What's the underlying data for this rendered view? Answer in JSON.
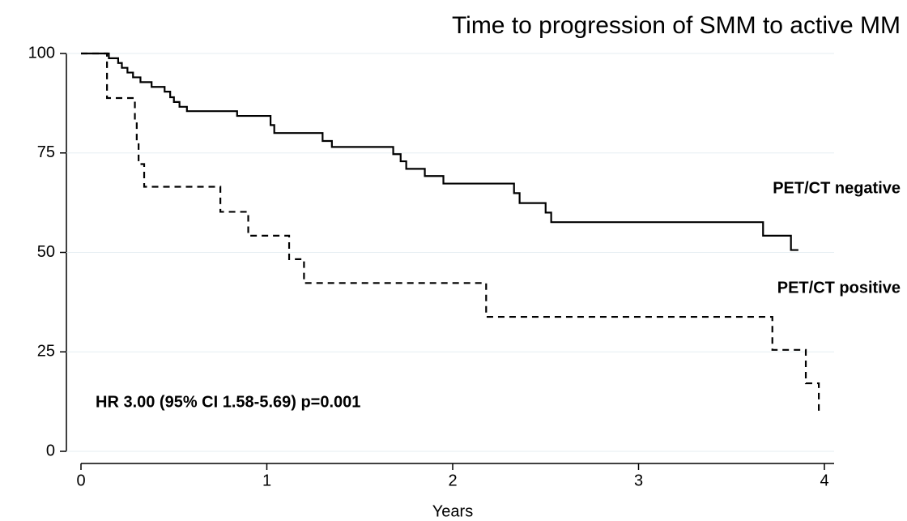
{
  "chart_data": {
    "type": "step",
    "title": "Time to progression of SMM to active MM",
    "x_label": "Years",
    "annotation": "HR 3.00 (95% CI 1.58-5.69) p=0.001",
    "xlim": [
      0,
      4
    ],
    "ylim": [
      0,
      100
    ],
    "xticks": [
      0,
      1,
      2,
      3,
      4
    ],
    "yticks": [
      0,
      25,
      50,
      75,
      100
    ],
    "grid": true,
    "series": [
      {
        "name": "PET/CT negative",
        "color": "#000000",
        "line_style": "solid",
        "x": [
          0,
          0.15,
          0.2,
          0.22,
          0.25,
          0.28,
          0.32,
          0.38,
          0.45,
          0.48,
          0.5,
          0.53,
          0.57,
          0.84,
          1.02,
          1.04,
          1.3,
          1.35,
          1.68,
          1.72,
          1.75,
          1.85,
          1.95,
          2.33,
          2.36,
          2.5,
          2.53,
          3.67,
          3.82,
          3.86
        ],
        "values": [
          100,
          98.8,
          97.6,
          96.4,
          95.2,
          94,
          92.8,
          91.6,
          90.4,
          89,
          87.8,
          86.6,
          85.5,
          84.3,
          82,
          80,
          78,
          76.5,
          74.7,
          72.9,
          71,
          69.2,
          67.3,
          64.9,
          62.4,
          60,
          57.6,
          54.2,
          50.6,
          50.6
        ]
      },
      {
        "name": "PET/CT positive",
        "color": "#000000",
        "line_style": "dashed",
        "x": [
          0,
          0.14,
          0.29,
          0.3,
          0.31,
          0.34,
          0.75,
          0.9,
          1.12,
          1.2,
          2.18,
          3.72,
          3.9,
          3.97
        ],
        "values": [
          100,
          88.8,
          83,
          77.7,
          72.2,
          66.5,
          60.2,
          54.2,
          48.3,
          42.3,
          33.8,
          25.5,
          17.1,
          9.5
        ]
      }
    ]
  }
}
